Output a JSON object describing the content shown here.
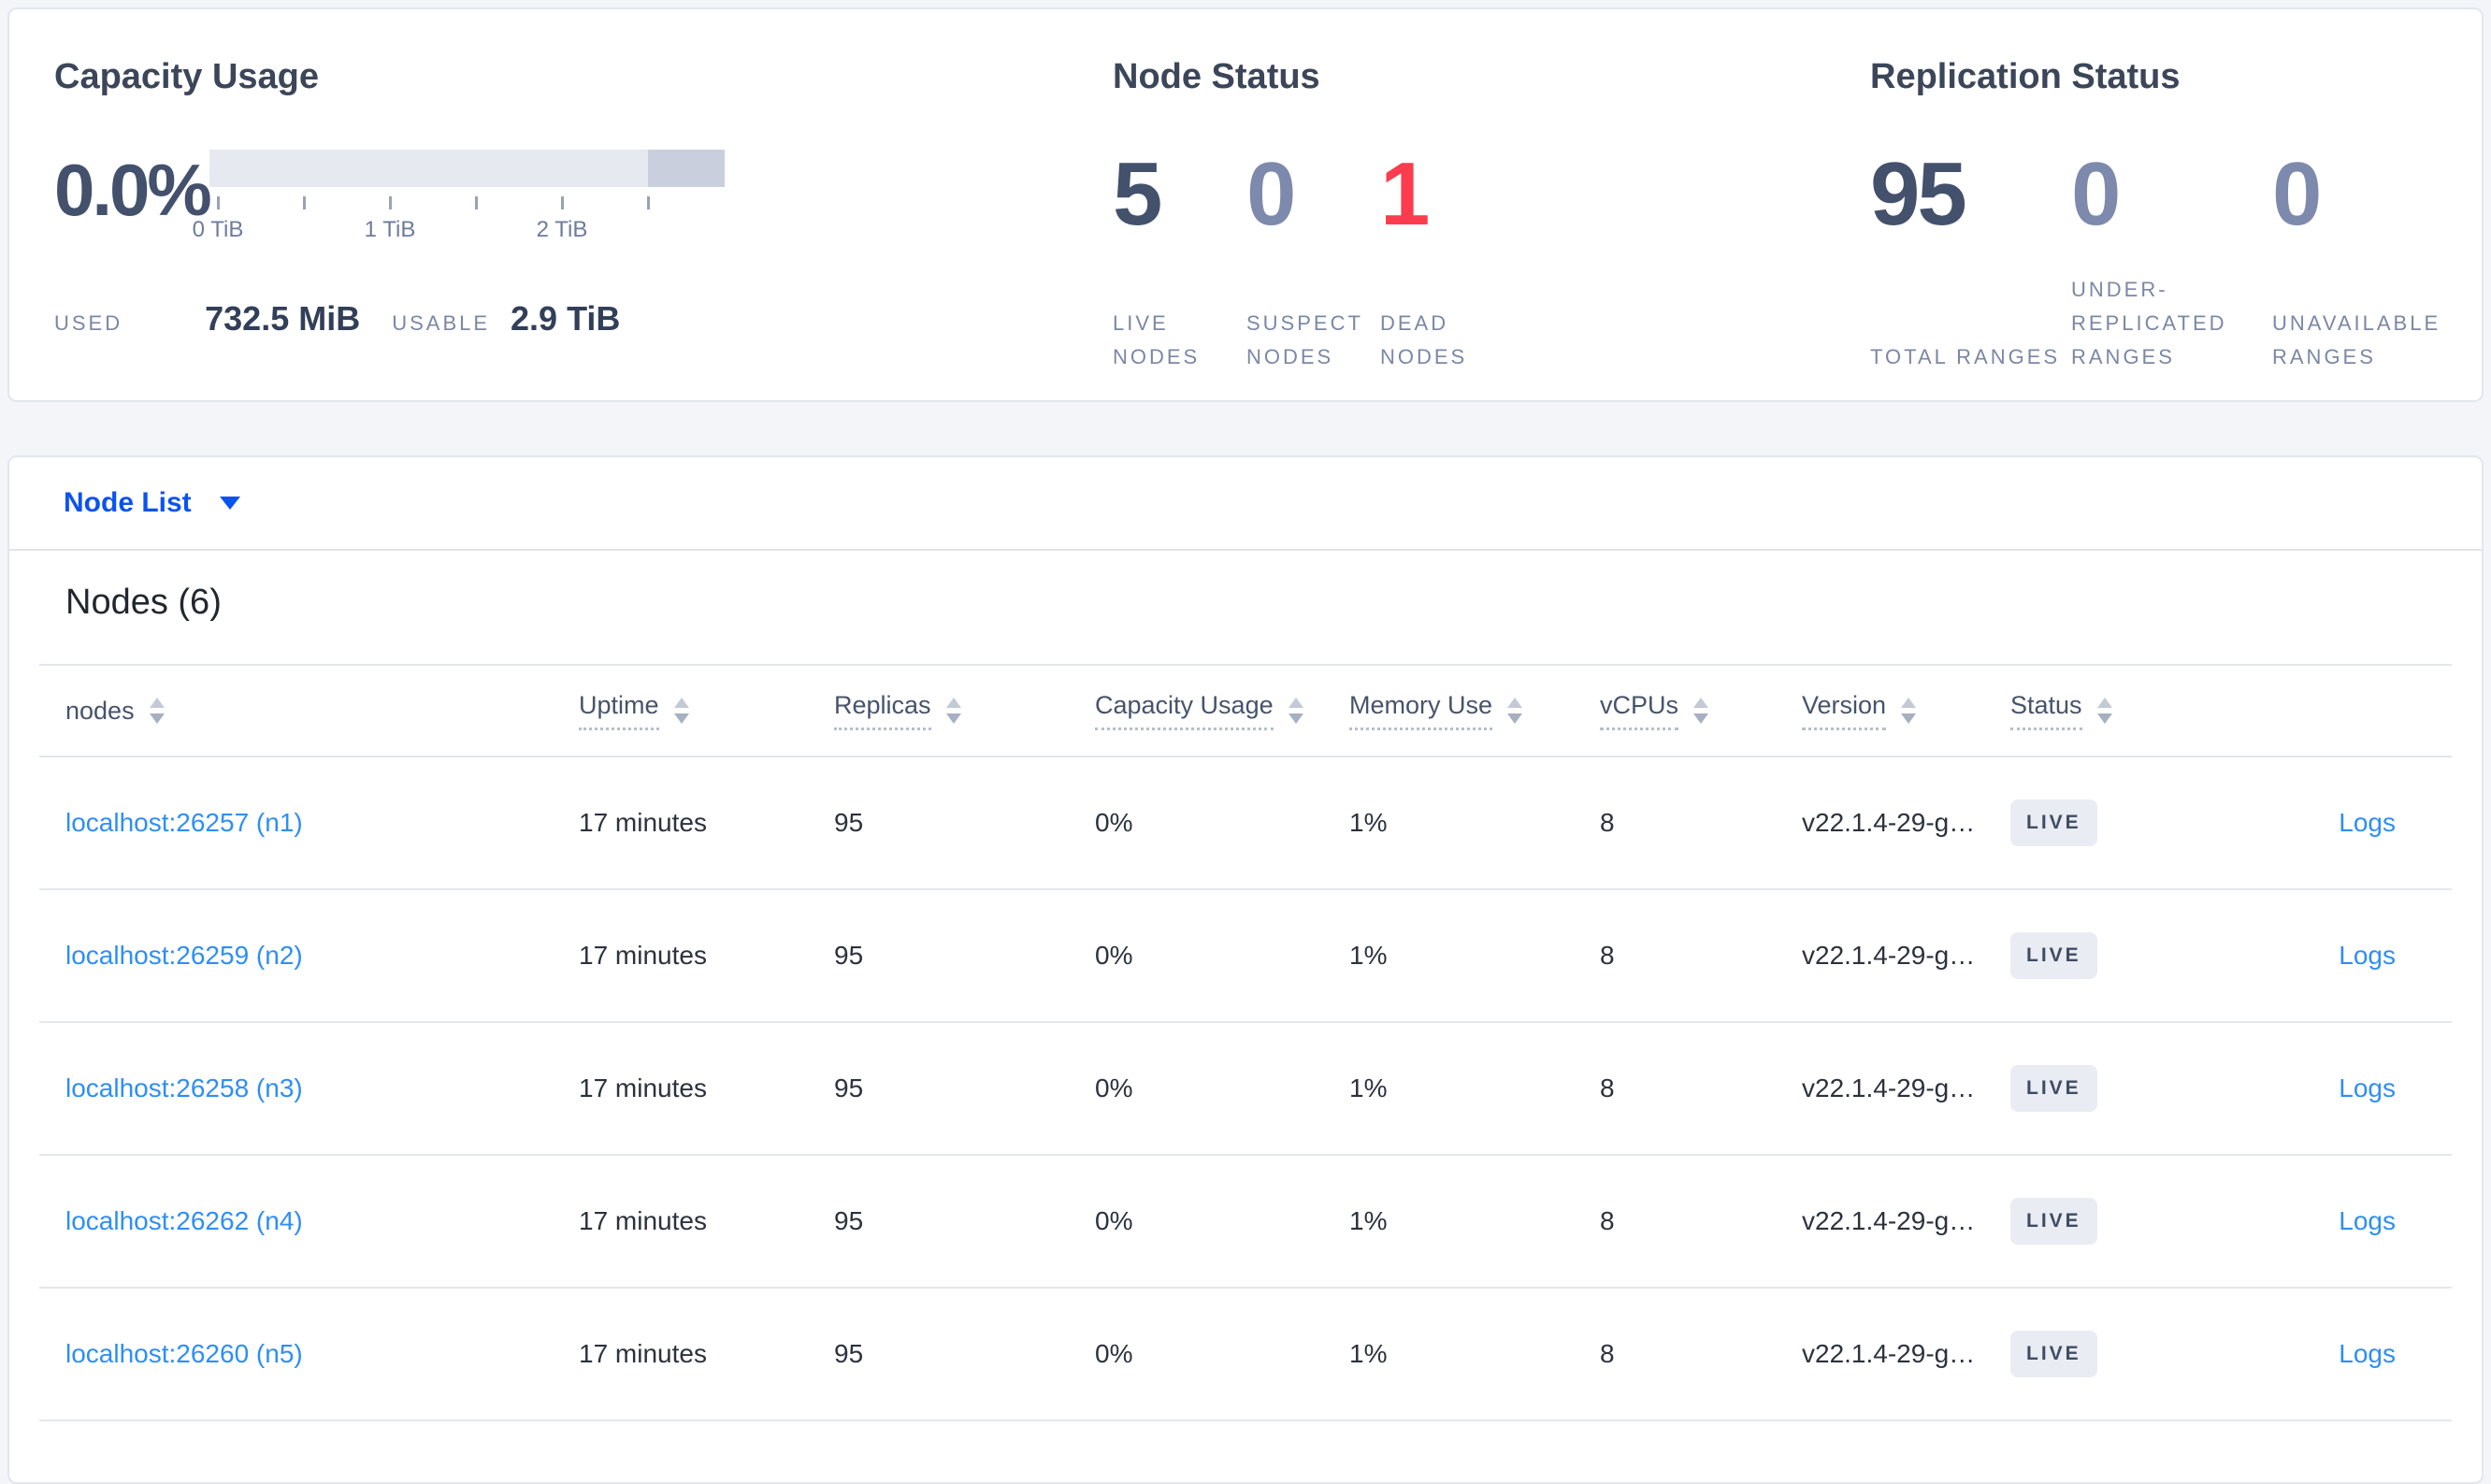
{
  "colors": {
    "accent_blue": "#0b53f0",
    "link_blue": "#2e8ef7",
    "danger_red": "#fb3b4e",
    "dark_slate": "#43516d",
    "muted_slate": "#7d8aad",
    "badge_bg": "#e9ecf2"
  },
  "capacity": {
    "title": "Capacity Usage",
    "percent": "0.0%",
    "tick_labels": [
      "0 TiB",
      "1 TiB",
      "2 TiB"
    ],
    "used_label": "USED",
    "used_value": "732.5 MiB",
    "usable_label": "USABLE",
    "usable_value": "2.9 TiB"
  },
  "node_status": {
    "title": "Node Status",
    "stats": [
      {
        "value": "5",
        "label": "LIVE NODES",
        "tone": "dark"
      },
      {
        "value": "0",
        "label": "SUSPECT NODES",
        "tone": "muted"
      },
      {
        "value": "1",
        "label": "DEAD NODES",
        "tone": "danger"
      }
    ]
  },
  "replication_status": {
    "title": "Replication Status",
    "stats": [
      {
        "value": "95",
        "label": "TOTAL RANGES",
        "tone": "dark"
      },
      {
        "value": "0",
        "label": "UNDER-REPLICATED RANGES",
        "tone": "muted"
      },
      {
        "value": "0",
        "label": "UNAVAILABLE RANGES",
        "tone": "muted"
      }
    ]
  },
  "view_selector": {
    "label": "Node List"
  },
  "nodes_section": {
    "title": "Nodes (6)"
  },
  "table": {
    "columns": [
      {
        "label": "nodes",
        "underlined": false
      },
      {
        "label": "Uptime",
        "underlined": true
      },
      {
        "label": "Replicas",
        "underlined": true
      },
      {
        "label": "Capacity Usage",
        "underlined": true
      },
      {
        "label": "Memory Use",
        "underlined": true
      },
      {
        "label": "vCPUs",
        "underlined": true
      },
      {
        "label": "Version",
        "underlined": true
      },
      {
        "label": "Status",
        "underlined": true
      },
      {
        "label": "",
        "underlined": false
      }
    ],
    "rows": [
      {
        "node": "localhost:26257 (n1)",
        "uptime": "17 minutes",
        "replicas": "95",
        "capacity": "0%",
        "memory": "1%",
        "vcpus": "8",
        "version": "v22.1.4-29-g…",
        "status": "LIVE",
        "logs": "Logs"
      },
      {
        "node": "localhost:26259 (n2)",
        "uptime": "17 minutes",
        "replicas": "95",
        "capacity": "0%",
        "memory": "1%",
        "vcpus": "8",
        "version": "v22.1.4-29-g…",
        "status": "LIVE",
        "logs": "Logs"
      },
      {
        "node": "localhost:26258 (n3)",
        "uptime": "17 minutes",
        "replicas": "95",
        "capacity": "0%",
        "memory": "1%",
        "vcpus": "8",
        "version": "v22.1.4-29-g…",
        "status": "LIVE",
        "logs": "Logs"
      },
      {
        "node": "localhost:26262 (n4)",
        "uptime": "17 minutes",
        "replicas": "95",
        "capacity": "0%",
        "memory": "1%",
        "vcpus": "8",
        "version": "v22.1.4-29-g…",
        "status": "LIVE",
        "logs": "Logs"
      },
      {
        "node": "localhost:26260 (n5)",
        "uptime": "17 minutes",
        "replicas": "95",
        "capacity": "0%",
        "memory": "1%",
        "vcpus": "8",
        "version": "v22.1.4-29-g…",
        "status": "LIVE",
        "logs": "Logs"
      }
    ]
  }
}
